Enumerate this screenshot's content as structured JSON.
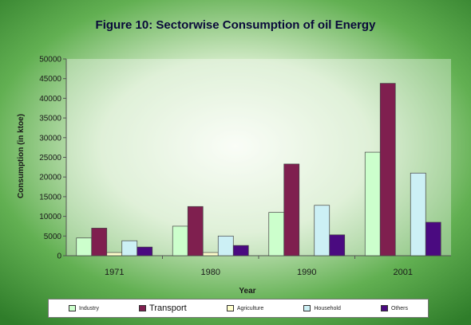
{
  "chart_data": {
    "type": "bar",
    "title": "Figure 10: Sectorwise Consumption of oil Energy",
    "xlabel": "Year",
    "ylabel": "Consumption (in ktoe)",
    "ylim": [
      0,
      50000
    ],
    "yticks": [
      "0",
      "5000",
      "10000",
      "15000",
      "20000",
      "25000",
      "30000",
      "35000",
      "40000",
      "45000",
      "50000"
    ],
    "grid": false,
    "legend_position": "bottom",
    "categories": [
      "1971",
      "1980",
      "1990",
      "2001"
    ],
    "series": [
      {
        "name": "Industry",
        "color": "#ccffcc",
        "values": [
          4500,
          7500,
          11000,
          26300
        ]
      },
      {
        "name": "Transport",
        "color": "#7f1f4f",
        "values": [
          7000,
          12500,
          23300,
          43800
        ]
      },
      {
        "name": "Agriculture",
        "color": "#ffffcc",
        "values": [
          800,
          800,
          0,
          0
        ]
      },
      {
        "name": "Household",
        "color": "#ccf0f5",
        "values": [
          3800,
          5000,
          12800,
          21000
        ]
      },
      {
        "name": "Others",
        "color": "#4a0a80",
        "values": [
          2200,
          2600,
          5300,
          8500
        ]
      }
    ]
  }
}
